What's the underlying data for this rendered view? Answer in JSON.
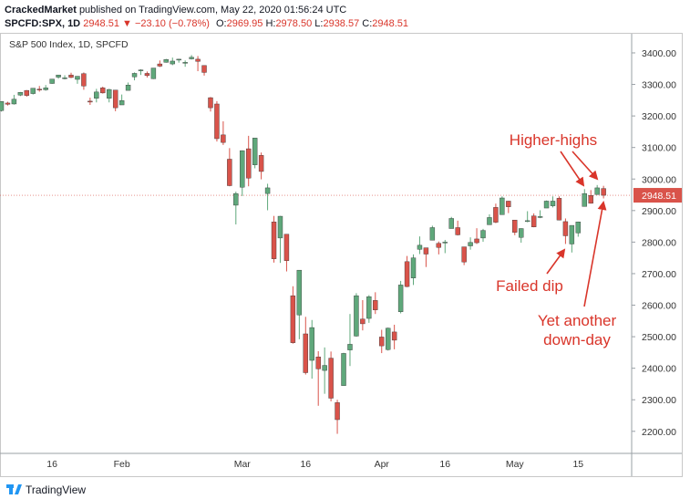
{
  "header": {
    "publisher": "CrackedMarket",
    "published": "published on TradingView.com, May 22, 2020 01:56:24 UTC",
    "symbol": "SPCFD:SPX, 1D",
    "last": "2948.51",
    "change": "▼ −23.10 (−0.78%)",
    "ohlc": [
      {
        "label": "O:",
        "value": "2969.95"
      },
      {
        "label": "H:",
        "value": "2978.50"
      },
      {
        "label": "L:",
        "value": "2938.57"
      },
      {
        "label": "C:",
        "value": "2948.51"
      }
    ]
  },
  "footer": {
    "brand": "TradingView"
  },
  "chart_data": {
    "type": "candlestick",
    "title": "S&P 500 Index, 1D, SPCFD",
    "up_color": "#5fa87b",
    "down_color": "#d9534a",
    "categories": [
      null,
      null,
      null,
      null,
      null,
      null,
      null,
      null,
      "16",
      null,
      null,
      null,
      null,
      null,
      null,
      null,
      null,
      null,
      null,
      "Feb",
      null,
      null,
      null,
      null,
      null,
      null,
      null,
      null,
      null,
      null,
      null,
      null,
      null,
      null,
      null,
      null,
      null,
      null,
      "Mar",
      null,
      null,
      null,
      null,
      null,
      null,
      null,
      null,
      null,
      "16",
      null,
      null,
      null,
      null,
      null,
      null,
      null,
      null,
      null,
      null,
      null,
      "Apr",
      null,
      null,
      null,
      null,
      null,
      null,
      null,
      null,
      null,
      "16",
      null,
      null,
      null,
      null,
      null,
      null,
      null,
      null,
      null,
      null,
      "May",
      null,
      null,
      null,
      null,
      null,
      null,
      null,
      null,
      null,
      "15",
      null,
      null,
      null,
      null
    ],
    "open": [
      3217,
      3241,
      3238,
      3266,
      3281,
      3271,
      3285,
      3283,
      3303,
      3323,
      3321,
      3330,
      3316,
      3334,
      3247,
      3256,
      3289,
      3256,
      3282,
      3235,
      3281,
      3324,
      3344,
      3335,
      3318,
      3365,
      3370,
      3365,
      3379,
      3369,
      3381,
      3380,
      3360,
      3258,
      3238,
      3140,
      3063,
      2917,
      2974,
      3096,
      3045,
      3075,
      2954,
      2864,
      2813,
      2825,
      2630,
      2569,
      2509,
      2425,
      2436,
      2393,
      2432,
      2291,
      2345,
      2458,
      2502,
      2556,
      2558,
      2615,
      2499,
      2459,
      2515,
      2579,
      2738,
      2686,
      2777,
      2782,
      2806,
      2796,
      2799,
      2843,
      2846,
      2785,
      2788,
      2810,
      2813,
      2855,
      2910,
      2887,
      2930,
      2870,
      2815,
      2868,
      2883,
      2878,
      2908,
      2915,
      2939,
      2865,
      2794,
      2829,
      2913,
      2948,
      2951,
      2969.95
    ],
    "high": [
      3247,
      3245,
      3267,
      3276,
      3282,
      3288,
      3295,
      3298,
      3317,
      3330,
      3329,
      3337,
      3326,
      3338,
      3258,
      3286,
      3293,
      3286,
      3282,
      3268,
      3306,
      3338,
      3348,
      3341,
      3352,
      3376,
      3381,
      3385,
      3381,
      3376,
      3393,
      3390,
      3360,
      3260,
      3247,
      3183,
      3098,
      2960,
      3091,
      3137,
      3130,
      3084,
      2985,
      2883,
      2883,
      2825,
      2660,
      2711,
      2563,
      2553,
      2454,
      2466,
      2453,
      2300,
      2449,
      2572,
      2638,
      2616,
      2632,
      2641,
      2522,
      2529,
      2538,
      2677,
      2756,
      2761,
      2818,
      2782,
      2852,
      2802,
      2807,
      2880,
      2868,
      2785,
      2815,
      2844,
      2842,
      2888,
      2922,
      2945,
      2931,
      2870,
      2844,
      2898,
      2891,
      2901,
      2932,
      2945,
      2945,
      2875,
      2853,
      2865,
      2968,
      2965,
      2981,
      2978.5
    ],
    "low": [
      3214,
      3233,
      3236,
      3263,
      3261,
      3268,
      3277,
      3280,
      3302,
      3318,
      3316,
      3320,
      3302,
      3283,
      3235,
      3243,
      3271,
      3243,
      3215,
      3235,
      3281,
      3313,
      3330,
      3322,
      3317,
      3355,
      3369,
      3361,
      3369,
      3356,
      3379,
      3342,
      3328,
      3214,
      3119,
      3108,
      2977,
      2856,
      2946,
      2977,
      3034,
      2999,
      2901,
      2735,
      2734,
      2707,
      2478,
      2492,
      2380,
      2367,
      2281,
      2319,
      2295,
      2192,
      2345,
      2407,
      2500,
      2520,
      2544,
      2572,
      2448,
      2456,
      2460,
      2574,
      2657,
      2664,
      2762,
      2721,
      2806,
      2761,
      2765,
      2843,
      2821,
      2727,
      2776,
      2794,
      2801,
      2855,
      2860,
      2887,
      2892,
      2822,
      2798,
      2863,
      2847,
      2876,
      2908,
      2910,
      2869,
      2794,
      2767,
      2817,
      2913,
      2922,
      2951,
      2938.57
    ],
    "close": [
      3246,
      3237,
      3253,
      3275,
      3265,
      3288,
      3283,
      3289,
      3317,
      3330,
      3321,
      3322,
      3326,
      3295,
      3244,
      3276,
      3273,
      3284,
      3226,
      3249,
      3298,
      3335,
      3346,
      3328,
      3352,
      3358,
      3379,
      3374,
      3380,
      3370,
      3386,
      3373,
      3338,
      3226,
      3128,
      3116,
      2979,
      2954,
      3090,
      3003,
      3130,
      3024,
      2972,
      2747,
      2882,
      2741,
      2481,
      2711,
      2386,
      2529,
      2398,
      2409,
      2305,
      2237,
      2447,
      2476,
      2630,
      2541,
      2627,
      2585,
      2471,
      2527,
      2489,
      2664,
      2659,
      2750,
      2790,
      2762,
      2846,
      2783,
      2800,
      2875,
      2823,
      2737,
      2799,
      2798,
      2837,
      2878,
      2863,
      2940,
      2912,
      2831,
      2843,
      2868,
      2848,
      2881,
      2930,
      2930,
      2870,
      2820,
      2853,
      2864,
      2954,
      2923,
      2972,
      2948.51
    ],
    "ylim": [
      2130,
      3452
    ],
    "yticks": [
      {
        "value": 2200,
        "label": "2200.00"
      },
      {
        "value": 2300,
        "label": "2300.00"
      },
      {
        "value": 2400,
        "label": "2400.00"
      },
      {
        "value": 2500,
        "label": "2500.00"
      },
      {
        "value": 2600,
        "label": "2600.00"
      },
      {
        "value": 2700,
        "label": "2700.00"
      },
      {
        "value": 2800,
        "label": "2800.00"
      },
      {
        "value": 2900,
        "label": "2900.00"
      },
      {
        "value": 3000,
        "label": "3000.00"
      },
      {
        "value": 3100,
        "label": "3100.00"
      },
      {
        "value": 3200,
        "label": "3200.00"
      },
      {
        "value": 3300,
        "label": "3300.00"
      },
      {
        "value": 3400,
        "label": "3400.00"
      }
    ],
    "price_line": {
      "value": 2948.51,
      "label": "2948.51",
      "color": "#d9534a"
    },
    "annotations": [
      "Higher-highs",
      "Failed dip",
      "Yet another",
      "down-day"
    ]
  }
}
